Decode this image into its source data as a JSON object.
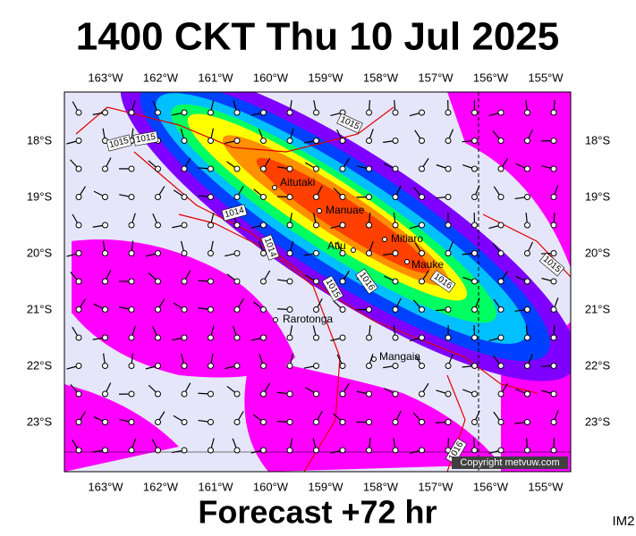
{
  "header": {
    "title": "1400 CKT Thu 10 Jul 2025"
  },
  "map": {
    "lon_labels": [
      "163°W",
      "162°W",
      "161°W",
      "160°W",
      "159°W",
      "158°W",
      "157°W",
      "156°W",
      "155°W"
    ],
    "lat_labels": [
      "18°S",
      "19°S",
      "20°S",
      "21°S",
      "22°S",
      "23°S"
    ],
    "places": [
      "Aitutaki",
      "Manuae",
      "Atiu",
      "Mitiaro",
      "Mauke",
      "Rarotonga",
      "Mangaia"
    ],
    "isobar_labels": [
      "1015",
      "1015",
      "1015",
      "1014",
      "1014",
      "1015",
      "1016",
      "1016",
      "1015",
      "1016"
    ],
    "copyright": "Copyright metvuw.com"
  },
  "footer": {
    "caption": "Forecast +72 hr",
    "code": "IM2"
  }
}
